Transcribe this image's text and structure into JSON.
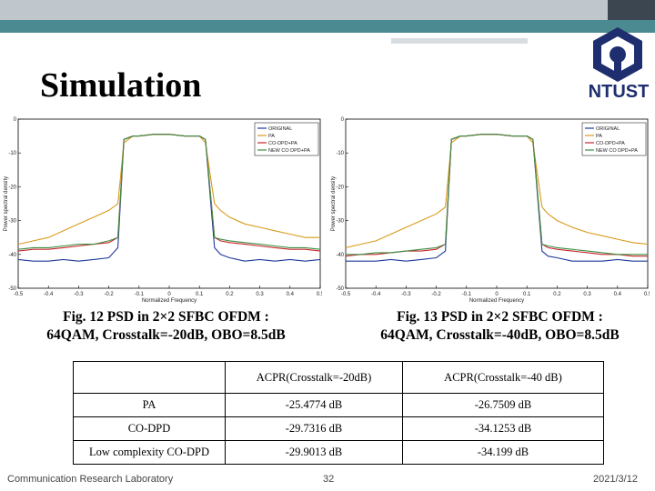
{
  "slide": {
    "title": "Simulation",
    "logo_text": "NTUST",
    "figures": [
      {
        "caption_line1": "Fig. 12 PSD in 2×2 SFBC OFDM :",
        "caption_line2": "64QAM, Crosstalk=-20dB, OBO=8.5dB"
      },
      {
        "caption_line1": "Fig. 13 PSD in 2×2 SFBC OFDM :",
        "caption_line2": "64QAM, Crosstalk=-40dB, OBO=8.5dB"
      }
    ],
    "table": {
      "headers": [
        "",
        "ACPR(Crosstalk=-20dB)",
        "ACPR(Crosstalk=-40 dB)"
      ],
      "rows": [
        [
          "PA",
          "-25.4774 dB",
          "-26.7509 dB"
        ],
        [
          "CO-DPD",
          "-29.7316 dB",
          "-34.1253 dB"
        ],
        [
          "Low complexity CO-DPD",
          "-29.9013 dB",
          "-34.199 dB"
        ]
      ]
    },
    "footer": {
      "left": "Communication Research Laboratory",
      "page": "32",
      "date": "2021/3/12"
    }
  },
  "chart_data": [
    {
      "type": "line",
      "xlabel": "Normalized Frequency",
      "ylabel": "Power spectral density",
      "xlim": [
        -0.5,
        0.5
      ],
      "ylim": [
        -50,
        0
      ],
      "xticks": [
        "-0.5",
        "-0.4",
        "-0.3",
        "-0.2",
        "-0.1",
        "0",
        "0.1",
        "0.2",
        "0.3",
        "0.4",
        "0.5"
      ],
      "yticks": [
        "0",
        "-10",
        "-20",
        "-30",
        "-40",
        "-50"
      ],
      "legend_position": "top-right",
      "x": [
        -0.5,
        -0.45,
        -0.4,
        -0.35,
        -0.3,
        -0.25,
        -0.2,
        -0.17,
        -0.15,
        -0.12,
        -0.1,
        -0.05,
        0,
        0.05,
        0.1,
        0.12,
        0.15,
        0.17,
        0.2,
        0.25,
        0.3,
        0.35,
        0.4,
        0.45,
        0.5
      ],
      "series": [
        {
          "name": "ORIGINAL",
          "color": "#1f3a9e",
          "values": [
            -41.5,
            -42,
            -42,
            -41.5,
            -42,
            -41.5,
            -41,
            -38,
            -6,
            -5,
            -5,
            -4.5,
            -4.5,
            -5,
            -5,
            -6,
            -38,
            -40,
            -41,
            -42,
            -41.5,
            -42,
            -41.5,
            -42,
            -41.5
          ]
        },
        {
          "name": "PA",
          "color": "#d99a1a",
          "values": [
            -37,
            -36,
            -35,
            -33,
            -31,
            -29,
            -27,
            -25,
            -7,
            -5,
            -5,
            -4.5,
            -4.5,
            -5,
            -5,
            -7,
            -25,
            -27,
            -29,
            -31,
            -32,
            -33,
            -34,
            -35,
            -35
          ]
        },
        {
          "name": "CO-DPD+PA",
          "color": "#c8262b",
          "values": [
            -39,
            -38.5,
            -38.5,
            -38,
            -37.5,
            -37,
            -36.5,
            -35,
            -6,
            -5,
            -5,
            -4.5,
            -4.5,
            -5,
            -5,
            -6,
            -35,
            -36,
            -36.5,
            -37,
            -37.5,
            -38,
            -38.5,
            -38.5,
            -39
          ]
        },
        {
          "name": "NEW CO DPD+PA",
          "color": "#3e8f43",
          "values": [
            -38.5,
            -38,
            -38,
            -37.5,
            -37,
            -37,
            -36,
            -35,
            -6,
            -5,
            -5,
            -4.5,
            -4.5,
            -5,
            -5,
            -6,
            -35,
            -35.5,
            -36,
            -36.5,
            -37,
            -37.5,
            -38,
            -38,
            -38.5
          ]
        }
      ]
    },
    {
      "type": "line",
      "xlabel": "Normalized Frequency",
      "ylabel": "Power spectral density",
      "xlim": [
        -0.5,
        0.5
      ],
      "ylim": [
        -50,
        0
      ],
      "xticks": [
        "-0.5",
        "-0.4",
        "-0.3",
        "-0.2",
        "-0.1",
        "0",
        "0.1",
        "0.2",
        "0.3",
        "0.4",
        "0.5"
      ],
      "yticks": [
        "0",
        "-10",
        "-20",
        "-30",
        "-40",
        "-50"
      ],
      "legend_position": "top-right",
      "x": [
        -0.5,
        -0.45,
        -0.4,
        -0.35,
        -0.3,
        -0.25,
        -0.2,
        -0.17,
        -0.15,
        -0.12,
        -0.1,
        -0.05,
        0,
        0.05,
        0.1,
        0.12,
        0.15,
        0.17,
        0.2,
        0.25,
        0.3,
        0.35,
        0.4,
        0.45,
        0.5
      ],
      "series": [
        {
          "name": "ORIGINAL",
          "color": "#1f3a9e",
          "values": [
            -42,
            -42,
            -42,
            -41.5,
            -42,
            -41.5,
            -41,
            -39,
            -6,
            -5,
            -5,
            -4.5,
            -4.5,
            -5,
            -5,
            -6,
            -39,
            -40.5,
            -41,
            -42,
            -42,
            -42,
            -41.5,
            -42,
            -42
          ]
        },
        {
          "name": "PA",
          "color": "#d99a1a",
          "values": [
            -38,
            -37,
            -36,
            -34,
            -32,
            -30,
            -28,
            -26,
            -7,
            -5,
            -5,
            -4.5,
            -4.5,
            -5,
            -5,
            -7,
            -26,
            -28,
            -30,
            -32,
            -33.5,
            -34.5,
            -35.5,
            -36.5,
            -37
          ]
        },
        {
          "name": "CO-DPD+PA",
          "color": "#c8262b",
          "values": [
            -40.5,
            -40,
            -40,
            -39.5,
            -39,
            -39,
            -38.5,
            -37,
            -6,
            -5,
            -5,
            -4.5,
            -4.5,
            -5,
            -5,
            -6,
            -37,
            -38,
            -38.5,
            -39,
            -39.5,
            -40,
            -40,
            -40.5,
            -40.5
          ]
        },
        {
          "name": "NEW CO DPD+PA",
          "color": "#3e8f43",
          "values": [
            -40,
            -40,
            -39.5,
            -39.5,
            -39,
            -38.5,
            -38,
            -37,
            -6,
            -5,
            -5,
            -4.5,
            -4.5,
            -5,
            -5,
            -6,
            -37,
            -37.5,
            -38,
            -38.5,
            -39,
            -39.5,
            -40,
            -40,
            -40
          ]
        }
      ]
    }
  ]
}
